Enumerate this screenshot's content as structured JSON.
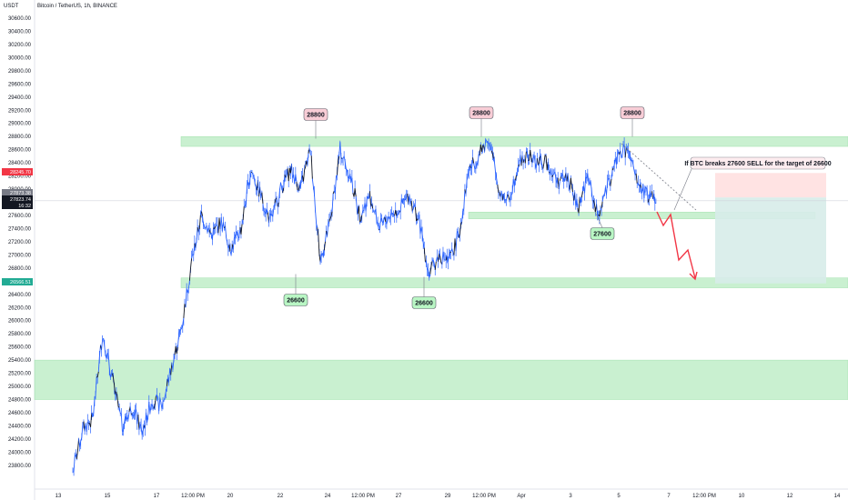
{
  "header": {
    "currency": "USDT",
    "symbol_line": "Bitcoin / TetherUS, 1h, BINANCE"
  },
  "chart_data": {
    "type": "line",
    "ylim": [
      23600,
      30800
    ],
    "y_ticks": [
      23800,
      24000,
      24200,
      24400,
      24600,
      24800,
      25000,
      25200,
      25400,
      25600,
      25800,
      26000,
      26200,
      26400,
      26600,
      26800,
      27000,
      27200,
      27400,
      27600,
      27800,
      28000,
      28200,
      28400,
      28600,
      28800,
      29000,
      29200,
      29400,
      29600,
      29800,
      30000,
      30200,
      30400,
      30600
    ],
    "x_ticks": [
      "13",
      "15",
      "17",
      "12:00 PM",
      "20",
      "22",
      "24",
      "12:00 PM",
      "27",
      "29",
      "12:00 PM",
      "Apr",
      "3",
      "5",
      "7",
      "12:00 PM",
      "10",
      "12",
      "14"
    ],
    "price_series": [
      {
        "x": "Mar 13",
        "y": 23700
      },
      {
        "x": "Mar 13",
        "y": 24350
      },
      {
        "x": "Mar 14",
        "y": 24500
      },
      {
        "x": "Mar 14",
        "y": 25800
      },
      {
        "x": "Mar 14",
        "y": 25100
      },
      {
        "x": "Mar 15",
        "y": 24400
      },
      {
        "x": "Mar 15",
        "y": 24700
      },
      {
        "x": "Mar 15",
        "y": 24300
      },
      {
        "x": "Mar 16",
        "y": 24800
      },
      {
        "x": "Mar 16",
        "y": 24700
      },
      {
        "x": "Mar 17",
        "y": 25300
      },
      {
        "x": "Mar 17",
        "y": 25900
      },
      {
        "x": "Mar 17",
        "y": 26900
      },
      {
        "x": "Mar 18",
        "y": 27600
      },
      {
        "x": "Mar 18",
        "y": 27300
      },
      {
        "x": "Mar 18",
        "y": 27500
      },
      {
        "x": "Mar 19",
        "y": 27100
      },
      {
        "x": "Mar 19",
        "y": 27400
      },
      {
        "x": "Mar 20",
        "y": 28300
      },
      {
        "x": "Mar 20",
        "y": 27900
      },
      {
        "x": "Mar 20",
        "y": 27500
      },
      {
        "x": "Mar 21",
        "y": 28000
      },
      {
        "x": "Mar 21",
        "y": 28300
      },
      {
        "x": "Mar 22",
        "y": 28000
      },
      {
        "x": "Mar 22",
        "y": 28600
      },
      {
        "x": "Mar 22",
        "y": 26900
      },
      {
        "x": "Mar 23",
        "y": 27500
      },
      {
        "x": "Mar 23",
        "y": 28600
      },
      {
        "x": "Mar 23",
        "y": 28200
      },
      {
        "x": "Mar 24",
        "y": 27600
      },
      {
        "x": "Mar 24",
        "y": 27900
      },
      {
        "x": "Mar 25",
        "y": 27400
      },
      {
        "x": "Mar 25",
        "y": 27600
      },
      {
        "x": "Mar 26",
        "y": 27700
      },
      {
        "x": "Mar 26",
        "y": 27900
      },
      {
        "x": "Mar 27",
        "y": 27500
      },
      {
        "x": "Mar 27",
        "y": 26700
      },
      {
        "x": "Mar 27",
        "y": 27000
      },
      {
        "x": "Mar 28",
        "y": 26900
      },
      {
        "x": "Mar 28",
        "y": 27300
      },
      {
        "x": "Mar 29",
        "y": 28300
      },
      {
        "x": "Mar 29",
        "y": 28500
      },
      {
        "x": "Mar 30",
        "y": 28800
      },
      {
        "x": "Mar 30",
        "y": 28000
      },
      {
        "x": "Mar 30",
        "y": 27800
      },
      {
        "x": "Mar 31",
        "y": 28400
      },
      {
        "x": "Mar 31",
        "y": 28500
      },
      {
        "x": "Apr 1",
        "y": 28400
      },
      {
        "x": "Apr 1",
        "y": 28400
      },
      {
        "x": "Apr 2",
        "y": 28100
      },
      {
        "x": "Apr 2",
        "y": 28200
      },
      {
        "x": "Apr 3",
        "y": 27700
      },
      {
        "x": "Apr 3",
        "y": 28200
      },
      {
        "x": "Apr 4",
        "y": 27600
      },
      {
        "x": "Apr 4",
        "y": 28000
      },
      {
        "x": "Apr 5",
        "y": 28500
      },
      {
        "x": "Apr 5",
        "y": 28600
      },
      {
        "x": "Apr 5",
        "y": 28100
      },
      {
        "x": "Apr 6",
        "y": 27900
      },
      {
        "x": "Apr 6",
        "y": 27900
      }
    ],
    "zones": [
      {
        "name": "resistance",
        "y_from": 28650,
        "y_to": 28800,
        "from": "Mar 17",
        "to": "end",
        "color": "#b7ebc0"
      },
      {
        "name": "mid-support",
        "y_from": 27550,
        "y_to": 27650,
        "from": "Mar 29",
        "to": "Apr 10",
        "color": "#b7ebc0"
      },
      {
        "name": "support",
        "y_from": 26500,
        "y_to": 26650,
        "from": "Mar 17",
        "to": "end",
        "color": "#b7ebc0"
      },
      {
        "name": "demand",
        "y_from": 24800,
        "y_to": 25400,
        "from": "start",
        "to": "end",
        "color": "#b7ebc0"
      }
    ],
    "annotations": [
      {
        "text": "28800",
        "type": "high",
        "color": "#f8cdd6"
      },
      {
        "text": "28800",
        "type": "high",
        "color": "#f8cdd6"
      },
      {
        "text": "28800",
        "type": "high",
        "color": "#f8cdd6"
      },
      {
        "text": "26600",
        "type": "low",
        "color": "#b9f6c4"
      },
      {
        "text": "26600",
        "type": "low",
        "color": "#b9f6c4"
      },
      {
        "text": "27600",
        "type": "low",
        "color": "#b9f6c4"
      }
    ],
    "callout": "If BTC breaks 27600 SELL for the target of 26600",
    "price_badges": [
      {
        "label": "28245.70",
        "value": 28245.7,
        "color": "#f23645"
      },
      {
        "label": "27873.38",
        "value": 27873.38,
        "color": "#787b86"
      },
      {
        "label": "27823.74",
        "value": 27823.74,
        "color": "#131722"
      },
      {
        "label": "16:32",
        "value": 27720,
        "color": "#131722"
      },
      {
        "label": "26566.51",
        "value": 26566.51,
        "color": "#22ab94"
      }
    ],
    "current_price": 27823.74,
    "trade": {
      "entry": 27873.38,
      "stop": 28245.7,
      "target": 26566.51,
      "stop_color": "#ffe0e0",
      "target_color": "#d7ece9"
    },
    "grid": false
  }
}
